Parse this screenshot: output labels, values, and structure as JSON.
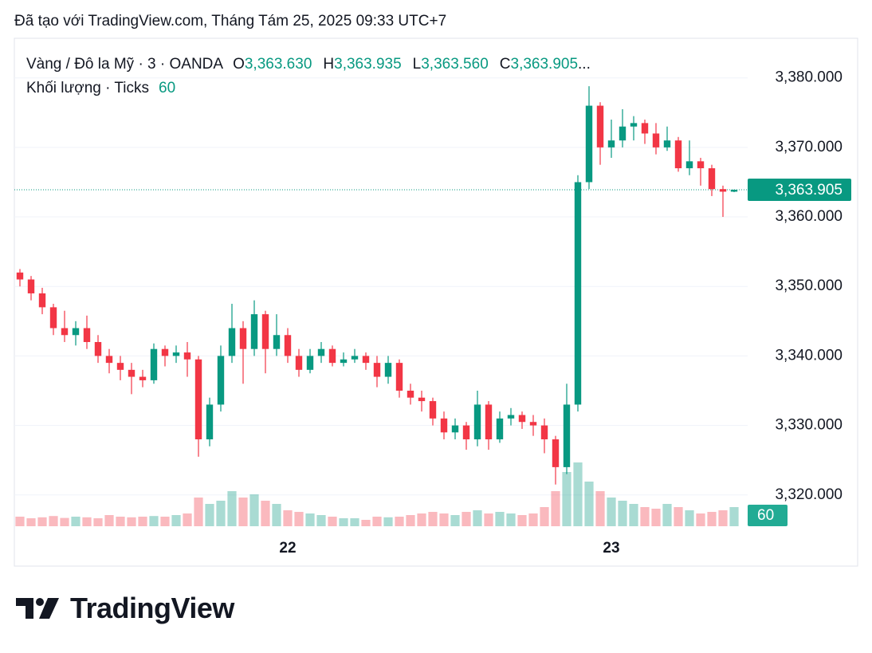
{
  "header": {
    "caption": "Đã tạo với TradingView.com, Tháng Tám 25, 2025 09:33 UTC+7"
  },
  "footer": {
    "brand": "TradingView"
  },
  "chart_data": {
    "type": "candlestick",
    "title": "Vàng / Đô la Mỹ · 3 · OANDA",
    "ohlc_legend": [
      {
        "key": "O",
        "value": "3,363.630"
      },
      {
        "key": "H",
        "value": "3,363.935"
      },
      {
        "key": "L",
        "value": "3,363.560"
      },
      {
        "key": "C",
        "value": "3,363.905"
      }
    ],
    "ellipsis": "...",
    "categories": [
      null,
      null,
      null,
      null,
      null,
      null,
      null,
      null,
      null,
      null,
      null,
      null,
      null,
      null,
      null,
      null,
      null,
      null,
      null,
      null,
      null,
      null,
      null,
      null,
      "22",
      null,
      null,
      null,
      null,
      null,
      null,
      null,
      null,
      null,
      null,
      null,
      null,
      null,
      null,
      null,
      null,
      null,
      null,
      null,
      null,
      null,
      null,
      null,
      null,
      null,
      null,
      null,
      null,
      "23",
      null,
      null,
      null,
      null,
      null,
      null,
      null,
      null,
      null,
      null,
      null
    ],
    "open": [
      3352,
      3351,
      3349,
      3347,
      3344,
      3343,
      3344,
      3342,
      3340,
      3339,
      3338,
      3337,
      3336.5,
      3341,
      3340,
      3340.5,
      3339.5,
      3328,
      3333,
      3340,
      3344,
      3341,
      3346,
      3341,
      3343,
      3340,
      3338,
      3340,
      3341,
      3339,
      3339.5,
      3340,
      3339,
      3337,
      3339,
      3335,
      3334,
      3333.5,
      3331,
      3329,
      3330,
      3328,
      3333,
      3328,
      3331,
      3331.5,
      3330.5,
      3330,
      3328,
      3324,
      3333,
      3365,
      3376,
      3370,
      3371,
      3373,
      3373.5,
      3372,
      3370,
      3371,
      3367,
      3368,
      3367,
      3364,
      3363.63
    ],
    "high": [
      3352.5,
      3351.5,
      3349.8,
      3347.5,
      3346.5,
      3345,
      3345.8,
      3343,
      3341,
      3340,
      3339,
      3338,
      3341.8,
      3341.5,
      3341.5,
      3342,
      3340,
      3334,
      3341.5,
      3347.5,
      3345,
      3348,
      3346.5,
      3346,
      3344,
      3341,
      3341,
      3342,
      3341.5,
      3340.5,
      3341,
      3340.5,
      3340,
      3340,
      3339.5,
      3336,
      3335,
      3334,
      3332,
      3331,
      3330.5,
      3335,
      3333.5,
      3332,
      3332.5,
      3332,
      3331.5,
      3331,
      3328.5,
      3336,
      3366,
      3378.8,
      3376.5,
      3374,
      3375.5,
      3374.5,
      3374,
      3373.5,
      3373,
      3371.5,
      3371,
      3368.5,
      3367.5,
      3364.5,
      3363.935
    ],
    "low": [
      3350,
      3348,
      3346,
      3343,
      3342,
      3341.5,
      3341,
      3339,
      3337.5,
      3336.5,
      3334.5,
      3335.5,
      3336,
      3338.5,
      3339,
      3337,
      3325.5,
      3327,
      3332,
      3339,
      3336,
      3340,
      3337.5,
      3340,
      3339,
      3337,
      3337.5,
      3339,
      3338.5,
      3338.5,
      3339,
      3338,
      3335.5,
      3336,
      3334,
      3333,
      3332,
      3330,
      3328,
      3328,
      3326.5,
      3327,
      3326.5,
      3327.5,
      3330,
      3329.5,
      3328.5,
      3326,
      3321.5,
      3323,
      3332,
      3364,
      3367.5,
      3368.5,
      3370,
      3371,
      3370.5,
      3369,
      3369.5,
      3366.5,
      3366,
      3364.5,
      3363,
      3360,
      3363.56
    ],
    "close": [
      3351,
      3349,
      3347,
      3344,
      3343,
      3344,
      3342,
      3340,
      3339,
      3338,
      3337,
      3336.5,
      3341,
      3340,
      3340.5,
      3339.5,
      3328,
      3333,
      3340,
      3344,
      3341,
      3346,
      3341,
      3343,
      3340,
      3338,
      3340,
      3341,
      3339,
      3339.5,
      3340,
      3339,
      3337,
      3339,
      3335,
      3334,
      3333.5,
      3331,
      3329,
      3330,
      3328,
      3333,
      3328,
      3331,
      3331.5,
      3330.5,
      3330,
      3328,
      3324,
      3333,
      3365,
      3376,
      3370,
      3371,
      3373,
      3373.5,
      3372,
      3370,
      3371,
      3367,
      3368,
      3367,
      3364,
      3363.63,
      3363.905
    ],
    "volume": {
      "name": "Khối lượng · Ticks",
      "values": [
        30,
        25,
        28,
        32,
        26,
        30,
        28,
        25,
        35,
        30,
        28,
        30,
        32,
        30,
        35,
        40,
        90,
        70,
        80,
        110,
        90,
        100,
        80,
        70,
        50,
        45,
        40,
        35,
        30,
        25,
        25,
        20,
        30,
        28,
        30,
        35,
        40,
        45,
        40,
        35,
        45,
        50,
        40,
        45,
        40,
        35,
        40,
        60,
        110,
        170,
        200,
        140,
        110,
        90,
        80,
        70,
        60,
        55,
        70,
        60,
        50,
        40,
        45,
        50,
        60
      ]
    },
    "up_color": "#089981",
    "down_color": "#f23645",
    "ylim": [
      3315.5,
      3385.7
    ],
    "yticks": [
      {
        "value": 3320,
        "label": "3,320.000"
      },
      {
        "value": 3330,
        "label": "3,330.000"
      },
      {
        "value": 3340,
        "label": "3,340.000"
      },
      {
        "value": 3350,
        "label": "3,350.000"
      },
      {
        "value": 3360,
        "label": "3,360.000"
      },
      {
        "value": 3370,
        "label": "3,370.000"
      },
      {
        "value": 3380,
        "label": "3,380.000"
      }
    ],
    "grid": true
  }
}
